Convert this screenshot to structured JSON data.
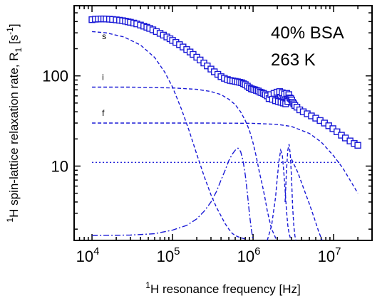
{
  "chart_data": {
    "type": "scatter",
    "title": "",
    "xlabel": {
      "pre": "1",
      "main": "H resonance frequency [Hz]"
    },
    "ylabel": {
      "pre": "1",
      "main": "H spin-lattice relaxation rate, R",
      "sub": "1",
      "unit_open": " [s",
      "unit_sup": "-1",
      "unit_close": "]"
    },
    "x_scale": "log",
    "y_scale": "log",
    "xlim": [
      6000,
      30000000
    ],
    "ylim": [
      1.5,
      600
    ],
    "x_ticks": [
      {
        "value": 10000,
        "base": "10",
        "exp": "4"
      },
      {
        "value": 100000,
        "base": "10",
        "exp": "5"
      },
      {
        "value": 1000000,
        "base": "10",
        "exp": "6"
      },
      {
        "value": 10000000,
        "base": "10",
        "exp": "7"
      }
    ],
    "y_ticks": [
      {
        "value": 10,
        "label": "10"
      },
      {
        "value": 100,
        "label": "100"
      }
    ],
    "annotations": [
      "40%  BSA",
      "263 K"
    ],
    "component_labels": [
      {
        "text": "s",
        "x": 9600,
        "y": 255
      },
      {
        "text": "i",
        "x": 9600,
        "y": 90
      },
      {
        "text": "f",
        "x": 9600,
        "y": 36
      }
    ],
    "color": "#1a1ad6",
    "series": [
      {
        "role": "measured",
        "style": "squares",
        "x": [
          10000,
          11000,
          12000,
          13000,
          14000,
          15000,
          16500,
          18000,
          20000,
          22000,
          24000,
          26000,
          28000,
          30000,
          33000,
          36000,
          40000,
          44000,
          48000,
          52000,
          57000,
          63000,
          70000,
          77000,
          85000,
          93000,
          100000,
          110000,
          122000,
          135000,
          150000,
          165000,
          180000,
          200000,
          220000,
          245000,
          270000,
          300000,
          330000,
          365000,
          400000,
          440000,
          480000,
          520000,
          560000,
          600000,
          640000,
          680000,
          720000,
          760000,
          800000,
          850000,
          900000,
          950000,
          1000000,
          1050000,
          1100000,
          1160000,
          1220000,
          1280000,
          1350000,
          1420000,
          1500000,
          1580000,
          1660000,
          1740000,
          1820000,
          1900000,
          1980000,
          2060000,
          2140000,
          2220000,
          2300000,
          2380000,
          2460000,
          2540000,
          2620000,
          2700000,
          2780000,
          2860000,
          2940000,
          3020000,
          3100000,
          3200000,
          3300000,
          3500000,
          3800000,
          4200000,
          4700000,
          5300000,
          6000000,
          6800000,
          7700000,
          8700000,
          9800000,
          11000000,
          12500000,
          14000000,
          16000000,
          18000000,
          20000000
        ],
        "y": [
          420,
          425,
          427,
          428,
          428,
          427,
          425,
          422,
          418,
          414,
          409,
          404,
          398,
          393,
          385,
          377,
          366,
          356,
          346,
          336,
          324,
          310,
          296,
          283,
          270,
          258,
          247,
          235,
          222,
          209,
          196,
          184,
          173,
          161,
          150,
          139,
          129,
          119,
          111,
          104,
          98,
          94,
          91,
          89,
          88,
          87,
          86,
          85,
          84,
          82,
          80,
          77,
          74,
          72,
          71,
          70,
          69,
          68,
          66,
          65,
          64,
          62,
          60,
          56,
          62,
          55,
          64,
          53,
          66,
          52,
          67,
          51,
          65,
          50,
          63,
          49,
          64,
          52,
          62,
          57,
          56,
          54,
          51,
          49,
          47,
          45,
          42,
          40,
          38,
          36,
          34,
          32,
          30,
          28,
          26,
          24,
          22,
          20.5,
          19,
          17.8,
          17
        ]
      },
      {
        "role": "component-s",
        "style": "dash",
        "x": [
          10000,
          15000,
          25000,
          40000,
          60000,
          80000,
          100000,
          130000,
          160000,
          200000,
          250000,
          300000,
          350000,
          400000,
          450000,
          500000,
          550000,
          600000,
          650000,
          700000,
          750000,
          800000
        ],
        "y": [
          310,
          300,
          270,
          220,
          160,
          110,
          75,
          42,
          25,
          13.5,
          7.5,
          4.8,
          3.5,
          2.8,
          2.3,
          2.0,
          1.8,
          1.7,
          1.65,
          1.6,
          1.58,
          1.55
        ]
      },
      {
        "role": "component-i",
        "style": "dash",
        "x": [
          10000,
          30000,
          100000,
          200000,
          300000,
          400000,
          500000,
          600000,
          700000,
          800000,
          900000,
          1000000,
          1100000,
          1200000,
          1300000,
          1400000,
          1500000,
          1600000,
          1700000,
          1800000,
          1900000,
          2000000
        ],
        "y": [
          75,
          75,
          73.5,
          71,
          67,
          62,
          55,
          48,
          40,
          32,
          25,
          18,
          12.5,
          8.5,
          6.2,
          4.5,
          3.2,
          2.5,
          2.0,
          1.8,
          1.6,
          1.5
        ]
      },
      {
        "role": "component-f",
        "style": "dash",
        "x": [
          10000,
          100000,
          300000,
          1000000,
          2000000,
          3000000,
          5000000,
          7000000,
          10000000,
          13000000,
          16000000,
          20000000
        ],
        "y": [
          30,
          30,
          30,
          29.8,
          29,
          27.5,
          23,
          18.5,
          13,
          9.5,
          7,
          5
        ]
      },
      {
        "role": "component-constant",
        "style": "dot",
        "x": [
          10000,
          12000000
        ],
        "y": [
          11,
          11
        ]
      },
      {
        "role": "peak-1",
        "style": "dashdot",
        "x": [
          10000,
          30000,
          60000,
          100000,
          150000,
          200000,
          250000,
          300000,
          350000,
          400000,
          450000,
          500000,
          550000,
          600000,
          650000,
          700000,
          750000,
          800000,
          850000,
          900000,
          950000,
          1000000
        ],
        "y": [
          1.7,
          1.72,
          1.78,
          1.95,
          2.2,
          2.6,
          3.2,
          4.0,
          5.2,
          7.0,
          9.0,
          11.5,
          13.5,
          15.0,
          15.8,
          14.5,
          11.5,
          8.0,
          5.0,
          3.0,
          2.0,
          1.5
        ]
      },
      {
        "role": "peak-2",
        "style": "dash",
        "x": [
          1500000,
          1700000,
          1900000,
          2000000,
          2100000,
          2200000,
          2300000,
          2400000,
          2500000,
          2600000,
          2700000,
          2800000,
          2900000,
          3000000
        ],
        "y": [
          1.5,
          2.2,
          4.5,
          7.5,
          11.5,
          15,
          13.5,
          9,
          5.5,
          3.2,
          2.2,
          1.8,
          1.6,
          1.5
        ]
      },
      {
        "role": "peak-3",
        "style": "dash",
        "x": [
          2500000,
          2600000,
          2700000,
          2800000,
          2900000,
          3000000,
          3100000,
          3200000,
          3300000,
          3400000
        ],
        "y": [
          4.0,
          9.0,
          15.0,
          17.5,
          13.5,
          7.5,
          3.5,
          2.2,
          1.7,
          1.5
        ]
      },
      {
        "role": "peak-tail",
        "style": "dash",
        "x": [
          3000000,
          3600000,
          4200000,
          5000000,
          5800000,
          6500000,
          7200000
        ],
        "y": [
          12,
          8.5,
          5.8,
          3.8,
          2.6,
          1.9,
          1.5
        ]
      }
    ]
  }
}
